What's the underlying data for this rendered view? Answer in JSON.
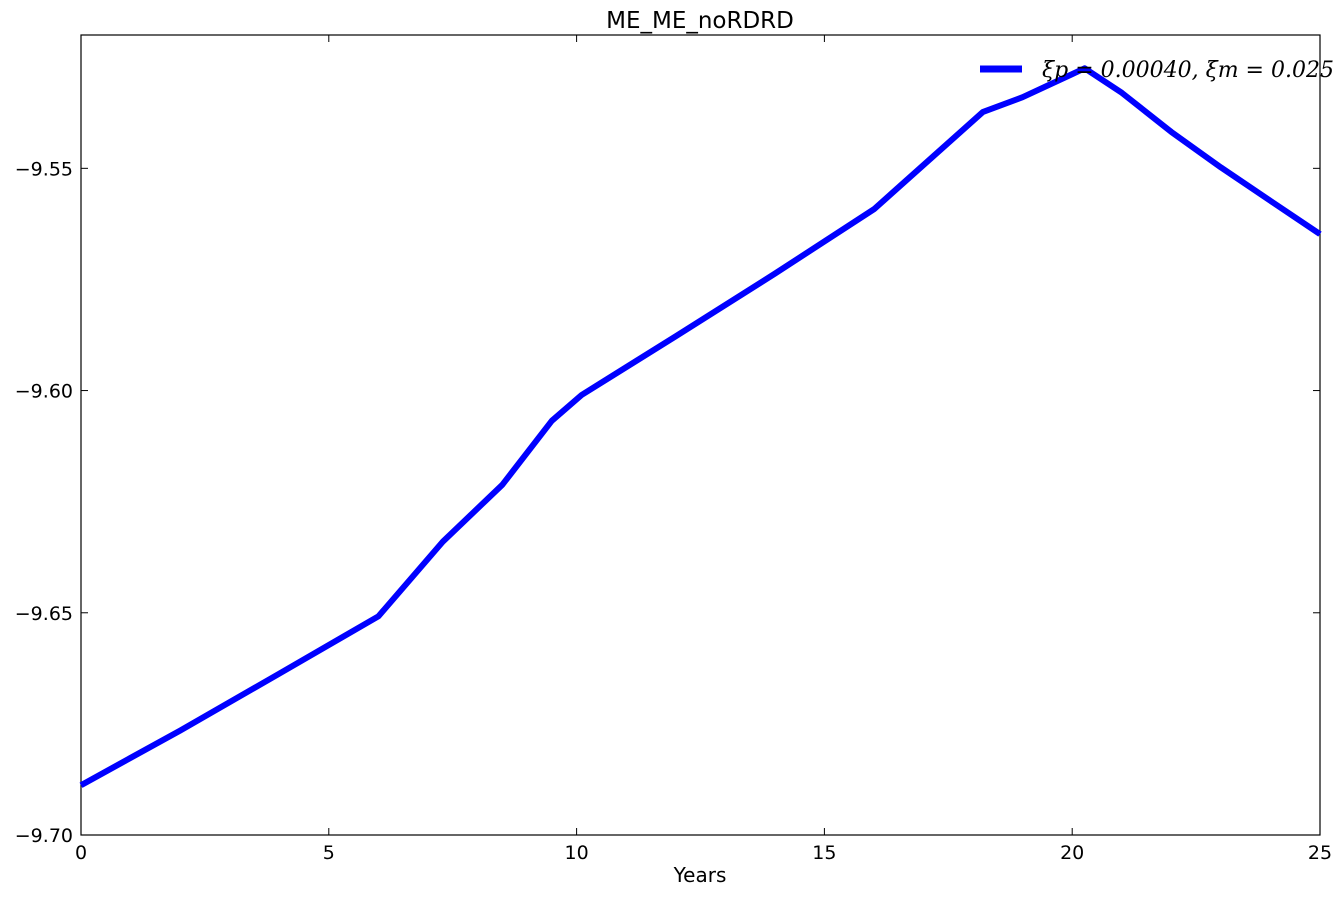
{
  "chart_data": {
    "type": "line",
    "title": "ME_ME_noRDRD",
    "xlabel": "Years",
    "ylabel": "",
    "xlim": [
      0,
      25
    ],
    "ylim": [
      -9.7,
      -9.52
    ],
    "xticks": [
      0,
      5,
      10,
      15,
      20,
      25
    ],
    "xtick_labels": [
      "0",
      "5",
      "10",
      "15",
      "20",
      "25"
    ],
    "yticks": [
      -9.7,
      -9.65,
      -9.6,
      -9.55
    ],
    "ytick_labels": [
      "−9.70",
      "−9.65",
      "−9.60",
      "−9.55"
    ],
    "grid": false,
    "legend_position": "top-right",
    "series": [
      {
        "name": "ξp = 0.00040, ξm = 0.025",
        "color": "#0000ff",
        "x": [
          0,
          2,
          4,
          6,
          7.3,
          8.5,
          9.5,
          10.1,
          12,
          14,
          16,
          18.2,
          19,
          20,
          20.25,
          21,
          22,
          23,
          24,
          25
        ],
        "y": [
          -9.6888,
          -9.6765,
          -9.6637,
          -9.6508,
          -9.634,
          -9.6212,
          -9.6068,
          -9.601,
          -9.5878,
          -9.5737,
          -9.5592,
          -9.5373,
          -9.534,
          -9.5288,
          -9.5275,
          -9.533,
          -9.5418,
          -9.5498,
          -9.5573,
          -9.5648
        ]
      }
    ]
  }
}
